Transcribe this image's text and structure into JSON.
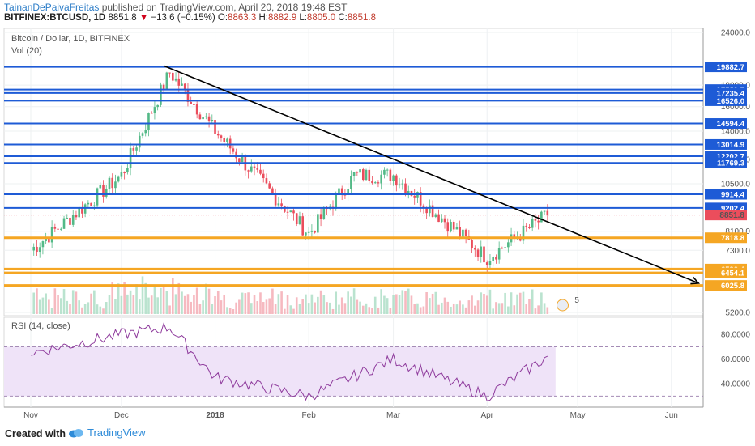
{
  "header": {
    "author": "TainanDePaivaFreitas",
    "published_text": "published on TradingView.com, April 20, 2018 19:48 EST",
    "symbol": "BITFINEX:BTCUSD, 1D",
    "last": "8851.8",
    "change": "−13.6 (−0.15%)",
    "o_label": "O:",
    "o_value": "8863.3",
    "h_label": "H:",
    "h_value": "8882.9",
    "l_label": "L:",
    "l_value": "8805.0",
    "c_label": "C:",
    "c_value": "8851.8"
  },
  "legend": {
    "title": "Bitcoin / Dollar, 1D, BITFINEX",
    "volume": "Vol (20)",
    "rsi": "RSI (14, close)"
  },
  "footer": {
    "created_with": "Created with",
    "brand": "TradingView"
  },
  "colors": {
    "up": "#53b987",
    "down": "#eb4d5c",
    "vol_up": "#a9dcc3",
    "vol_down": "#f4a8b0",
    "blue_line": "#1e5bd6",
    "orange_line": "#f5a623",
    "rsi_line": "#8e3a9c",
    "rsi_band": "#efe3f8",
    "trendline": "#000000"
  },
  "chart_data": [
    {
      "type": "candlestick",
      "title": "Bitcoin / Dollar, 1D, BITFINEX",
      "y_axis_scale": "log",
      "y_ticks": [
        "24000.0",
        "18000.0",
        "16000.0",
        "14000.0",
        "12000.0",
        "10500.0",
        "8100.0",
        "7300.0",
        "5200.0"
      ],
      "ylim": [
        5200,
        24000
      ],
      "x_ticks": [
        "Nov",
        "Dec",
        "2018",
        "Feb",
        "Mar",
        "Apr",
        "May",
        "Jun"
      ],
      "anchors": [
        {
          "date": "Nov",
          "price": 7300
        },
        {
          "date": "Dec",
          "price": 11000
        },
        {
          "date": "mid-Dec",
          "price": 19300
        },
        {
          "date": "2018",
          "price": 14000
        },
        {
          "date": "Feb",
          "price": 8000
        },
        {
          "date": "mid-Feb",
          "price": 11000
        },
        {
          "date": "Mar",
          "price": 11000
        },
        {
          "date": "Apr",
          "price": 7000
        },
        {
          "date": "Apr 20",
          "price": 8851.8
        }
      ],
      "horizontal_levels": [
        {
          "value": "19882.7",
          "color": "blue"
        },
        {
          "value": "17561.7",
          "color": "blue"
        },
        {
          "value": "17235.4",
          "color": "blue"
        },
        {
          "value": "16526.0",
          "color": "blue"
        },
        {
          "value": "14594.4",
          "color": "blue"
        },
        {
          "value": "13014.9",
          "color": "blue"
        },
        {
          "value": "12202.7",
          "color": "blue"
        },
        {
          "value": "11769.3",
          "color": "blue"
        },
        {
          "value": "9914.4",
          "color": "blue"
        },
        {
          "value": "9202.4",
          "color": "blue"
        },
        {
          "value": "7818.8",
          "color": "orange"
        },
        {
          "value": "6590.4",
          "color": "orange"
        },
        {
          "value": "6454.1",
          "color": "orange"
        },
        {
          "value": "6025.8",
          "color": "orange"
        }
      ],
      "last_price": "8851.8",
      "trendline": {
        "from": {
          "date": "mid-Dec",
          "price": 20000
        },
        "to": {
          "date": "Jun",
          "price": 6100
        }
      }
    },
    {
      "type": "line",
      "title": "RSI (14, close)",
      "y_ticks": [
        "80.0000",
        "60.0000",
        "40.0000"
      ],
      "ylim": [
        25,
        90
      ],
      "band": [
        30,
        70
      ],
      "description_points": [
        {
          "date": "Nov",
          "rsi": 65
        },
        {
          "date": "Dec",
          "rsi": 80
        },
        {
          "date": "mid-Dec",
          "rsi": 86
        },
        {
          "date": "2018",
          "rsi": 45
        },
        {
          "date": "Feb",
          "rsi": 30
        },
        {
          "date": "Mar",
          "rsi": 60
        },
        {
          "date": "Apr",
          "rsi": 30
        },
        {
          "date": "Apr 20",
          "rsi": 62
        }
      ]
    }
  ]
}
